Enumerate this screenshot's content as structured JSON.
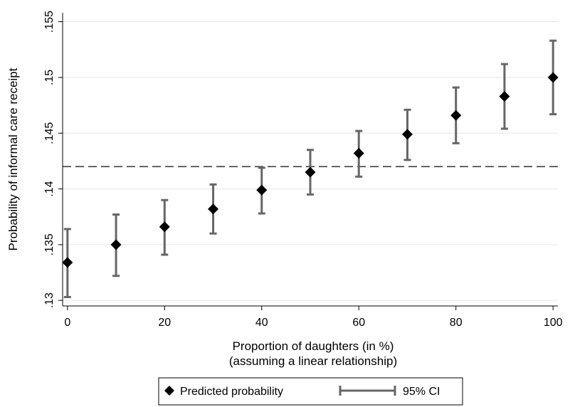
{
  "chart_data": {
    "type": "scatter",
    "xlabel": "Proportion of daughters (in %)",
    "xlabel_sub": "(assuming a linear relationship)",
    "ylabel": "Probability of informal care receipt",
    "xlim": [
      -1,
      101
    ],
    "ylim": [
      0.1295,
      0.1558
    ],
    "x_ticks": [
      0,
      20,
      40,
      60,
      80,
      100
    ],
    "x_tick_labels": [
      "0",
      "20",
      "40",
      "60",
      "80",
      "100"
    ],
    "y_ticks": [
      0.13,
      0.135,
      0.14,
      0.145,
      0.15,
      0.155
    ],
    "y_tick_labels": [
      ".13",
      ".135",
      ".14",
      ".145",
      ".15",
      ".155"
    ],
    "grid": true,
    "reference_line": {
      "y": 0.142,
      "style": "dashed"
    },
    "series": [
      {
        "name": "Predicted probability",
        "marker": "diamond",
        "color": "#000000",
        "x": [
          0,
          10,
          20,
          30,
          40,
          50,
          60,
          70,
          80,
          90,
          100
        ],
        "y": [
          0.1334,
          0.135,
          0.1366,
          0.1382,
          0.1399,
          0.1415,
          0.1432,
          0.1449,
          0.1466,
          0.1483,
          0.15
        ]
      },
      {
        "name": "95% CI",
        "type": "errorbar",
        "color": "#666666",
        "x": [
          0,
          10,
          20,
          30,
          40,
          50,
          60,
          70,
          80,
          90,
          100
        ],
        "lower": [
          0.1303,
          0.1322,
          0.1341,
          0.136,
          0.1378,
          0.1395,
          0.1411,
          0.1426,
          0.1441,
          0.1454,
          0.1467
        ],
        "upper": [
          0.1364,
          0.1377,
          0.139,
          0.1404,
          0.1419,
          0.1435,
          0.1452,
          0.1471,
          0.1491,
          0.1512,
          0.1533
        ]
      }
    ],
    "legend": {
      "placement": "bottom-center",
      "entries": [
        "Predicted probability",
        "95% CI"
      ]
    }
  },
  "colors": {
    "marker": "#000000",
    "errorbar": "#666666",
    "grid": "#e6e6e6",
    "axis": "#000000",
    "reference": "#333333"
  }
}
